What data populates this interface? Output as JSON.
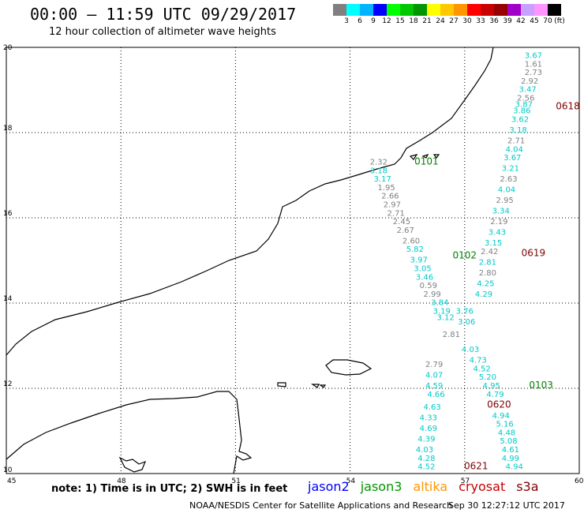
{
  "header": {
    "title": "00:00 – 11:59 UTC 09/29/2017",
    "subtitle": "12 hour collection of altimeter wave heights"
  },
  "legend": {
    "colors": [
      "#808080",
      "#00ffff",
      "#00b4ff",
      "#0000ff",
      "#00ff00",
      "#00c800",
      "#009600",
      "#ffff00",
      "#ffc800",
      "#ff9600",
      "#ff0000",
      "#c80000",
      "#960000",
      "#a000c8",
      "#c8a0ff",
      "#ff96ff",
      "#000000"
    ],
    "labels": [
      "3",
      "6",
      "9",
      "12",
      "15",
      "18",
      "21",
      "24",
      "27",
      "30",
      "33",
      "36",
      "39",
      "42",
      "45",
      "70",
      "(ft)"
    ]
  },
  "map": {
    "lon_ticks": [
      "45",
      "48",
      "51",
      "54",
      "57",
      "60"
    ],
    "lat_ticks": [
      "20",
      "18",
      "16",
      "14",
      "12",
      "10"
    ],
    "lon_range": [
      45,
      60
    ],
    "lat_range": [
      10,
      20
    ],
    "grid": true,
    "pass_labels": [
      {
        "text": "0101",
        "lon": 56.0,
        "lat": 17.25,
        "color": "#008000"
      },
      {
        "text": "0102",
        "lon": 57.0,
        "lat": 15.05,
        "color": "#008000"
      },
      {
        "text": "0103",
        "lon": 59.0,
        "lat": 12.0,
        "color": "#008000"
      },
      {
        "text": "0618",
        "lon": 59.7,
        "lat": 18.55,
        "color": "#800000"
      },
      {
        "text": "0619",
        "lon": 58.8,
        "lat": 15.1,
        "color": "#800000"
      },
      {
        "text": "0620",
        "lon": 57.9,
        "lat": 11.55,
        "color": "#800000"
      },
      {
        "text": "0621",
        "lon": 57.3,
        "lat": 10.1,
        "color": "#800000"
      }
    ],
    "wave_values": [
      {
        "t": "3.67",
        "lon": 58.8,
        "lat": 19.75,
        "c": "#00c8c8"
      },
      {
        "t": "1.61",
        "lon": 58.8,
        "lat": 19.55,
        "c": "#808080"
      },
      {
        "t": "2.73",
        "lon": 58.8,
        "lat": 19.35,
        "c": "#808080"
      },
      {
        "t": "2.92",
        "lon": 58.7,
        "lat": 19.15,
        "c": "#808080"
      },
      {
        "t": "3.47",
        "lon": 58.65,
        "lat": 18.95,
        "c": "#00c8c8"
      },
      {
        "t": "2.56",
        "lon": 58.6,
        "lat": 18.75,
        "c": "#808080"
      },
      {
        "t": "3.87",
        "lon": 58.55,
        "lat": 18.6,
        "c": "#00c8c8"
      },
      {
        "t": "3.86",
        "lon": 58.5,
        "lat": 18.45,
        "c": "#00c8c8"
      },
      {
        "t": "3.62",
        "lon": 58.45,
        "lat": 18.25,
        "c": "#00c8c8"
      },
      {
        "t": "3.18",
        "lon": 58.4,
        "lat": 18.0,
        "c": "#00c8c8"
      },
      {
        "t": "2.71",
        "lon": 58.35,
        "lat": 17.75,
        "c": "#808080"
      },
      {
        "t": "4.04",
        "lon": 58.3,
        "lat": 17.55,
        "c": "#00c8c8"
      },
      {
        "t": "3.67",
        "lon": 58.25,
        "lat": 17.35,
        "c": "#00c8c8"
      },
      {
        "t": "3.21",
        "lon": 58.2,
        "lat": 17.1,
        "c": "#00c8c8"
      },
      {
        "t": "2.63",
        "lon": 58.15,
        "lat": 16.85,
        "c": "#808080"
      },
      {
        "t": "4.04",
        "lon": 58.1,
        "lat": 16.6,
        "c": "#00c8c8"
      },
      {
        "t": "2.95",
        "lon": 58.05,
        "lat": 16.35,
        "c": "#808080"
      },
      {
        "t": "3.34",
        "lon": 57.95,
        "lat": 16.1,
        "c": "#00c8c8"
      },
      {
        "t": "2.19",
        "lon": 57.9,
        "lat": 15.85,
        "c": "#808080"
      },
      {
        "t": "3.43",
        "lon": 57.85,
        "lat": 15.6,
        "c": "#00c8c8"
      },
      {
        "t": "3.15",
        "lon": 57.75,
        "lat": 15.35,
        "c": "#00c8c8"
      },
      {
        "t": "2.42",
        "lon": 57.65,
        "lat": 15.15,
        "c": "#808080"
      },
      {
        "t": "2.81",
        "lon": 57.6,
        "lat": 14.9,
        "c": "#00c8c8"
      },
      {
        "t": "2.80",
        "lon": 57.6,
        "lat": 14.65,
        "c": "#808080"
      },
      {
        "t": "4.25",
        "lon": 57.55,
        "lat": 14.4,
        "c": "#00c8c8"
      },
      {
        "t": "4.29",
        "lon": 57.5,
        "lat": 14.15,
        "c": "#00c8c8"
      },
      {
        "t": "2.32",
        "lon": 54.75,
        "lat": 17.25,
        "c": "#808080"
      },
      {
        "t": "3.18",
        "lon": 54.75,
        "lat": 17.05,
        "c": "#00c8c8"
      },
      {
        "t": "3.17",
        "lon": 54.85,
        "lat": 16.85,
        "c": "#00c8c8"
      },
      {
        "t": "1.95",
        "lon": 54.95,
        "lat": 16.65,
        "c": "#808080"
      },
      {
        "t": "2.66",
        "lon": 55.05,
        "lat": 16.45,
        "c": "#808080"
      },
      {
        "t": "2.97",
        "lon": 55.1,
        "lat": 16.25,
        "c": "#808080"
      },
      {
        "t": "2.71",
        "lon": 55.2,
        "lat": 16.05,
        "c": "#808080"
      },
      {
        "t": "2.45",
        "lon": 55.35,
        "lat": 15.85,
        "c": "#808080"
      },
      {
        "t": "2.67",
        "lon": 55.45,
        "lat": 15.65,
        "c": "#808080"
      },
      {
        "t": "2.60",
        "lon": 55.6,
        "lat": 15.4,
        "c": "#808080"
      },
      {
        "t": "5.82",
        "lon": 55.7,
        "lat": 15.2,
        "c": "#00c8c8"
      },
      {
        "t": "3.97",
        "lon": 55.8,
        "lat": 14.95,
        "c": "#00c8c8"
      },
      {
        "t": "3.05",
        "lon": 55.9,
        "lat": 14.75,
        "c": "#00c8c8"
      },
      {
        "t": "3.46",
        "lon": 55.95,
        "lat": 14.55,
        "c": "#00c8c8"
      },
      {
        "t": "0.59",
        "lon": 56.05,
        "lat": 14.35,
        "c": "#808080"
      },
      {
        "t": "2.99",
        "lon": 56.15,
        "lat": 14.15,
        "c": "#808080"
      },
      {
        "t": "3.84",
        "lon": 56.35,
        "lat": 13.95,
        "c": "#00c8c8"
      },
      {
        "t": "3.19",
        "lon": 56.4,
        "lat": 13.75,
        "c": "#00c8c8"
      },
      {
        "t": "3.12",
        "lon": 56.5,
        "lat": 13.6,
        "c": "#00c8c8"
      },
      {
        "t": "2.81",
        "lon": 56.65,
        "lat": 13.2,
        "c": "#808080"
      },
      {
        "t": "2.79",
        "lon": 56.2,
        "lat": 12.5,
        "c": "#808080"
      },
      {
        "t": "4.07",
        "lon": 56.2,
        "lat": 12.25,
        "c": "#00c8c8"
      },
      {
        "t": "4.59",
        "lon": 56.2,
        "lat": 12.0,
        "c": "#00c8c8"
      },
      {
        "t": "4.66",
        "lon": 56.25,
        "lat": 11.8,
        "c": "#00c8c8"
      },
      {
        "t": "4.63",
        "lon": 56.15,
        "lat": 11.5,
        "c": "#00c8c8"
      },
      {
        "t": "4.33",
        "lon": 56.05,
        "lat": 11.25,
        "c": "#00c8c8"
      },
      {
        "t": "4.69",
        "lon": 56.05,
        "lat": 11.0,
        "c": "#00c8c8"
      },
      {
        "t": "4.39",
        "lon": 56.0,
        "lat": 10.75,
        "c": "#00c8c8"
      },
      {
        "t": "4.03",
        "lon": 55.95,
        "lat": 10.5,
        "c": "#00c8c8"
      },
      {
        "t": "4.28",
        "lon": 56.0,
        "lat": 10.3,
        "c": "#00c8c8"
      },
      {
        "t": "4.52",
        "lon": 56.0,
        "lat": 10.1,
        "c": "#00c8c8"
      },
      {
        "t": "3.76",
        "lon": 57.0,
        "lat": 13.75,
        "c": "#00c8c8"
      },
      {
        "t": "3.06",
        "lon": 57.05,
        "lat": 13.5,
        "c": "#00c8c8"
      },
      {
        "t": "4.03",
        "lon": 57.15,
        "lat": 12.85,
        "c": "#00c8c8"
      },
      {
        "t": "4.73",
        "lon": 57.35,
        "lat": 12.6,
        "c": "#00c8c8"
      },
      {
        "t": "4.52",
        "lon": 57.45,
        "lat": 12.4,
        "c": "#00c8c8"
      },
      {
        "t": "5.20",
        "lon": 57.6,
        "lat": 12.2,
        "c": "#00c8c8"
      },
      {
        "t": "4.95",
        "lon": 57.7,
        "lat": 12.0,
        "c": "#00c8c8"
      },
      {
        "t": "4.79",
        "lon": 57.8,
        "lat": 11.8,
        "c": "#00c8c8"
      },
      {
        "t": "4.94",
        "lon": 57.95,
        "lat": 11.3,
        "c": "#00c8c8"
      },
      {
        "t": "5.16",
        "lon": 58.05,
        "lat": 11.1,
        "c": "#00c8c8"
      },
      {
        "t": "4.48",
        "lon": 58.1,
        "lat": 10.9,
        "c": "#00c8c8"
      },
      {
        "t": "5.08",
        "lon": 58.15,
        "lat": 10.7,
        "c": "#00c8c8"
      },
      {
        "t": "4.61",
        "lon": 58.2,
        "lat": 10.5,
        "c": "#00c8c8"
      },
      {
        "t": "4.99",
        "lon": 58.2,
        "lat": 10.3,
        "c": "#00c8c8"
      },
      {
        "t": "4.94",
        "lon": 58.3,
        "lat": 10.1,
        "c": "#00c8c8"
      }
    ]
  },
  "footer": {
    "note": "note: 1) Time is in UTC; 2) SWH is in feet",
    "satellites": [
      {
        "name": "jason2",
        "color": "#0000ff"
      },
      {
        "name": "jason3",
        "color": "#009600"
      },
      {
        "name": "altika",
        "color": "#ff9600"
      },
      {
        "name": "cryosat",
        "color": "#c80000"
      },
      {
        "name": "s3a",
        "color": "#800000"
      }
    ],
    "credit": "NOAA/NESDIS Center for Satellite Applications and Research",
    "timestamp": "Sep 30 12:27:12 UTC 2017"
  }
}
